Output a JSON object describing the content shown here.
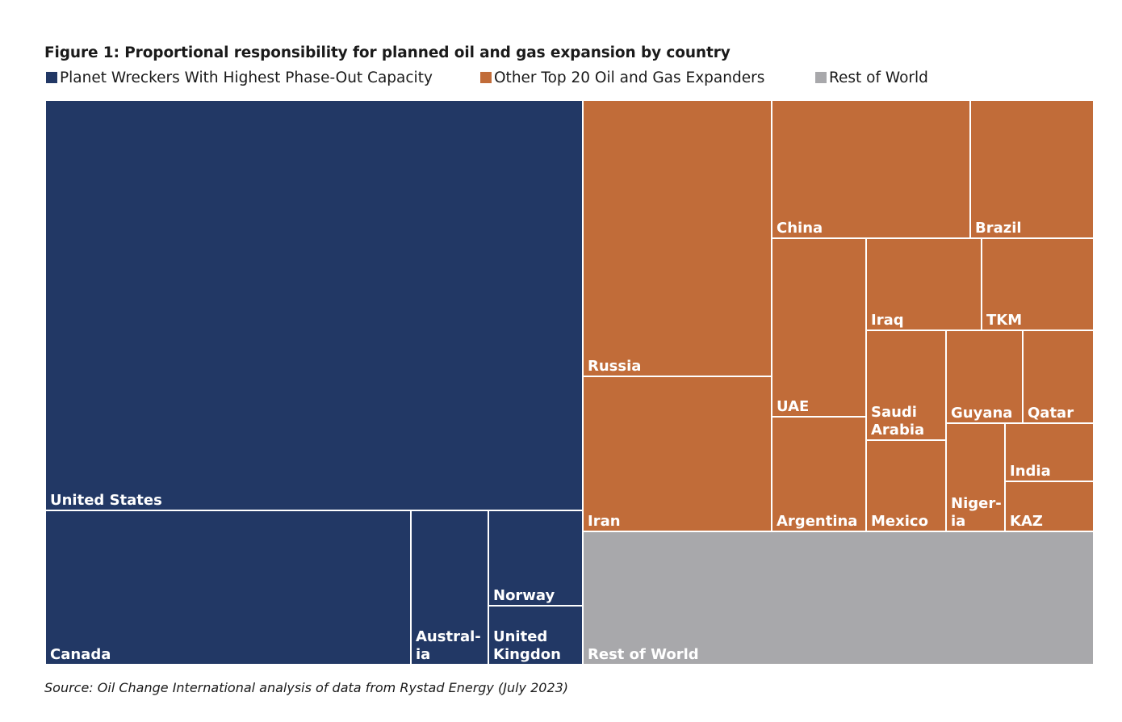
{
  "title": "Figure 1: Proportional responsibility for planned oil and gas expansion by country",
  "source": "Source: Oil Change International analysis of data from Rystad Energy (July 2023)",
  "legend": [
    {
      "label": "Planet Wreckers With Highest Phase-Out Capacity",
      "color": "#223865"
    },
    {
      "label": "Other Top 20 Oil and Gas Expanders",
      "color": "#c16c39"
    },
    {
      "label": "Rest of World",
      "color": "#a8a8ab"
    }
  ],
  "chart_data": {
    "type": "treemap",
    "title": "Figure 1: Proportional responsibility for planned oil and gas expansion by country",
    "groups": [
      {
        "name": "Planet Wreckers With Highest Phase-Out Capacity",
        "color": "#223865",
        "items": [
          {
            "label": "United States",
            "share": 0.358
          },
          {
            "label": "Canada",
            "share": 0.106
          },
          {
            "label": "Austral-\nia",
            "share": 0.022
          },
          {
            "label": "Norway",
            "share": 0.015
          },
          {
            "label": "United\nKingdon",
            "share": 0.013
          }
        ]
      },
      {
        "name": "Other Top 20 Oil and Gas Expanders",
        "color": "#c16c39",
        "items": [
          {
            "label": "Russia",
            "share": 0.094
          },
          {
            "label": "Iran",
            "share": 0.054
          },
          {
            "label": "China",
            "share": 0.046
          },
          {
            "label": "Brazil",
            "share": 0.028
          },
          {
            "label": "UAE",
            "share": 0.028
          },
          {
            "label": "Argentina",
            "share": 0.016
          },
          {
            "label": "Iraq",
            "share": 0.018
          },
          {
            "label": "TKM",
            "share": 0.017
          },
          {
            "label": "Saudi\nArabia",
            "share": 0.012
          },
          {
            "label": "Mexico",
            "share": 0.012
          },
          {
            "label": "Guyana",
            "share": 0.012
          },
          {
            "label": "Qatar",
            "share": 0.011
          },
          {
            "label": "Niger-\nia",
            "share": 0.009
          },
          {
            "label": "India",
            "share": 0.005
          },
          {
            "label": "KAZ",
            "share": 0.005
          }
        ]
      },
      {
        "name": "Rest of World",
        "color": "#a8a8ab",
        "items": [
          {
            "label": "Rest of World",
            "share": 0.12
          }
        ]
      }
    ]
  }
}
